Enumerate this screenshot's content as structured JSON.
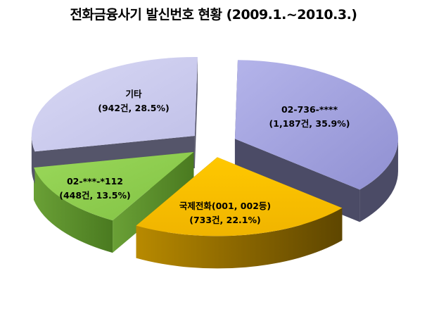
{
  "chart_data": {
    "type": "pie",
    "title": "전화금융사기 발신번호 현황 (2009.1.~2010.3.)",
    "slices": [
      {
        "label": "02-736-****",
        "value": 1187,
        "percent": 35.9,
        "value_text": "(1,187건, 35.9%)",
        "color": "#a3a3dd",
        "side_color": "#4a4a66"
      },
      {
        "label": "국제전화(001, 002등)",
        "value": 733,
        "percent": 22.1,
        "value_text": "(733건, 22.1%)",
        "color": "#ffc000",
        "side_color": "#7a5c00"
      },
      {
        "label": "02-***-*112",
        "value": 448,
        "percent": 13.5,
        "value_text": "(448건, 13.5%)",
        "color": "#92d050",
        "side_color": "#4f7a25"
      },
      {
        "label": "기타",
        "value": 942,
        "percent": 28.5,
        "value_text": "(942건, 28.5%)",
        "color": "#ccccee",
        "side_color": "#55556a"
      }
    ]
  }
}
